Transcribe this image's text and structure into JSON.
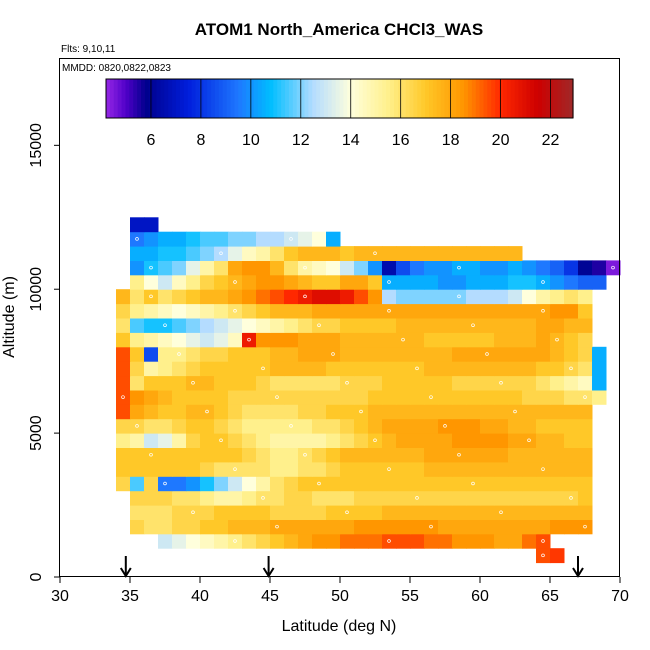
{
  "chart_data": {
    "type": "heatmap",
    "title": "ATOM1 North_America CHCl3_WAS",
    "flights_note": "Flts: 9,10,11",
    "dates_note": "MMDD: 0820,0822,0823",
    "xlabel": "Latitude (deg N)",
    "ylabel": "Altitude (m)",
    "xlim": [
      30,
      70
    ],
    "ylim": [
      0,
      18000
    ],
    "xticks": [
      "30",
      "35",
      "40",
      "45",
      "50",
      "55",
      "60",
      "65",
      "70"
    ],
    "yticks": [
      "0",
      "5000",
      "10000",
      "15000"
    ],
    "colorbar": {
      "min": 4.2,
      "max": 22.9,
      "ticks": [
        "6",
        "8",
        "10",
        "12",
        "14",
        "16",
        "18",
        "20",
        "22"
      ]
    },
    "arrows_lat": [
      34.7,
      44.9,
      67.0
    ],
    "cell_size": {
      "lat_deg": 1.0,
      "alt_m": 500
    },
    "rows": [
      {
        "alt": 750,
        "lat_start": 64,
        "values": [
          19.5,
          19.8
        ]
      },
      {
        "alt": 1250,
        "lat_start": 37,
        "values": [
          13,
          13.5,
          14,
          14.5,
          15,
          15.5,
          16,
          16.5,
          17,
          17.5,
          18,
          18.5,
          18.5,
          19,
          19,
          19,
          19.5,
          19.5,
          19.5,
          19,
          19,
          18.5,
          18.5,
          18.5,
          18,
          18,
          19,
          19.5
        ]
      },
      {
        "alt": 1750,
        "lat_start": 35,
        "values": [
          16.5,
          16,
          16,
          16.5,
          16.5,
          17,
          17,
          17.5,
          17.5,
          17.5,
          18,
          18,
          18,
          18,
          18,
          18,
          18.5,
          18.5,
          18.5,
          18.5,
          18.5,
          18.5,
          18,
          18,
          18,
          18,
          18,
          18,
          18,
          18,
          18.5,
          18.5,
          18.5
        ]
      },
      {
        "alt": 2250,
        "lat_start": 35,
        "values": [
          16,
          16,
          16,
          16.5,
          16.5,
          16.5,
          17,
          17,
          17,
          17,
          16.5,
          16.5,
          16.5,
          16.5,
          17,
          17,
          17,
          17,
          17.5,
          17.5,
          17.5,
          17.5,
          17.5,
          17.5,
          17.5,
          17.5,
          17.5,
          17.5,
          17.5,
          17.5,
          17.5,
          17.5,
          17.5
        ]
      },
      {
        "alt": 2750,
        "lat_start": 35,
        "values": [
          16.5,
          16.5,
          16.5,
          16,
          16,
          15.5,
          15,
          15,
          15.5,
          16,
          16,
          16.5,
          16.5,
          16,
          16,
          16,
          16.5,
          16.5,
          16.5,
          16.5,
          16.5,
          16.5,
          16.5,
          16.5,
          16.5,
          16.5,
          16.5,
          16.5,
          16.5,
          16.5,
          16.5,
          16.5,
          17
        ]
      },
      {
        "alt": 3250,
        "lat_start": 34,
        "values": [
          16.5,
          11.5,
          16.5,
          9.5,
          9.5,
          10,
          11,
          12,
          13,
          14,
          15,
          16,
          16.5,
          17,
          17,
          17,
          17,
          17,
          17,
          17,
          17,
          17,
          17,
          17,
          17,
          17,
          17,
          17,
          17,
          17,
          17,
          17,
          17,
          17
        ]
      },
      {
        "alt": 3750,
        "lat_start": 34,
        "values": [
          17,
          17,
          17,
          17,
          17,
          17,
          16.5,
          16,
          16,
          16,
          16,
          15.5,
          15.5,
          16,
          16,
          16.5,
          17,
          17,
          17,
          17,
          17,
          17,
          17.5,
          17.5,
          17.5,
          17.5,
          17.5,
          17.5,
          17.5,
          17.5,
          17.5,
          17.5,
          17.5,
          17.5
        ]
      },
      {
        "alt": 4250,
        "lat_start": 34,
        "values": [
          17,
          17,
          17,
          17,
          17,
          17,
          17,
          17,
          17,
          16.5,
          16,
          15.5,
          15.5,
          16,
          16.5,
          17,
          17.5,
          17.5,
          17.5,
          17.5,
          17.5,
          17.5,
          18,
          18,
          18,
          18,
          18,
          18,
          17.5,
          17.5,
          17.5,
          17.5,
          17.5,
          17.5
        ]
      },
      {
        "alt": 4750,
        "lat_start": 34,
        "values": [
          15.5,
          15,
          13,
          13.5,
          15,
          16.5,
          17,
          17,
          16.5,
          16,
          15.5,
          15,
          15,
          15,
          15,
          15.5,
          16,
          16.5,
          17,
          17.5,
          18,
          18,
          18,
          18,
          18.5,
          18.5,
          18.5,
          18.5,
          18,
          18,
          17.5,
          17.5,
          17,
          17
        ]
      },
      {
        "alt": 5250,
        "lat_start": 34,
        "values": [
          16.5,
          16.5,
          16,
          16,
          16.5,
          17,
          17,
          16.5,
          16,
          15.5,
          15.5,
          15.5,
          15.5,
          15.5,
          16,
          16,
          16.5,
          17,
          17.5,
          18,
          18,
          18,
          18,
          18.5,
          18.5,
          18.5,
          18,
          18,
          17.5,
          17.5,
          17,
          17,
          17,
          17
        ]
      },
      {
        "alt": 5750,
        "lat_start": 34,
        "values": [
          19.5,
          18,
          17.5,
          17,
          17,
          17.5,
          17.5,
          17,
          16.5,
          16,
          16,
          16,
          16,
          16.5,
          16.5,
          17,
          17,
          17,
          17.5,
          17.5,
          17.5,
          17.5,
          17.5,
          17.5,
          17.5,
          17.5,
          17.5,
          17.5,
          17.5,
          17.5,
          17.5,
          17.5,
          17.5,
          17.5
        ]
      },
      {
        "alt": 6250,
        "lat_start": 34,
        "values": [
          19.5,
          18.5,
          18,
          17.5,
          17,
          17,
          17,
          17,
          16.5,
          16.5,
          16.5,
          16.5,
          16.5,
          16.5,
          16.5,
          16.5,
          16.5,
          16.5,
          17,
          17,
          17,
          17,
          17,
          17,
          17,
          17,
          17,
          17,
          17,
          16.5,
          16.5,
          16.5,
          16,
          16,
          15.5
        ]
      },
      {
        "alt": 6750,
        "lat_start": 34,
        "values": [
          19.5,
          16,
          17,
          17,
          17,
          17.5,
          17.5,
          17,
          17,
          17,
          16.5,
          16,
          16,
          16,
          16,
          16,
          16.5,
          16.5,
          16.5,
          17,
          17,
          17,
          17,
          17,
          16.5,
          16.5,
          16.5,
          16.5,
          16.5,
          16.5,
          16,
          15.5,
          15,
          14.5,
          10.5
        ]
      },
      {
        "alt": 7250,
        "lat_start": 34,
        "values": [
          19.5,
          16.5,
          15,
          15.5,
          16,
          16.5,
          17,
          17,
          17,
          17,
          17,
          17.5,
          17.5,
          17.5,
          17.5,
          17,
          17,
          17,
          17,
          17,
          17,
          17,
          17.5,
          17.5,
          17.5,
          17.5,
          17.5,
          17.5,
          17.5,
          17.5,
          17,
          17,
          16.5,
          16,
          10.5
        ]
      },
      {
        "alt": 7750,
        "lat_start": 34,
        "values": [
          19.5,
          17,
          8.5,
          15.5,
          15.5,
          16,
          16.5,
          16.5,
          17,
          17,
          17,
          17.5,
          17.5,
          18,
          18,
          18,
          17.5,
          17.5,
          17.5,
          17.5,
          17.5,
          17.5,
          17.5,
          17.5,
          18,
          18,
          18,
          18,
          18,
          18,
          18,
          17.5,
          17,
          16.5,
          10.5
        ]
      },
      {
        "alt": 8250,
        "lat_start": 34,
        "values": [
          17,
          15.5,
          15,
          14.5,
          14,
          13.5,
          13,
          13.5,
          14.5,
          20.5,
          18.5,
          18.5,
          18.5,
          18,
          18,
          18,
          17.5,
          17.5,
          17.5,
          17.5,
          17.5,
          17.5,
          17,
          17,
          17,
          17,
          17,
          17.5,
          17.5,
          17.5,
          18,
          17.5,
          17,
          16.5
        ]
      },
      {
        "alt": 8750,
        "lat_start": 34,
        "values": [
          16,
          11.5,
          11,
          11,
          11.5,
          12,
          12.5,
          13,
          13.5,
          14,
          14.5,
          15,
          15.5,
          16,
          16.5,
          16.5,
          17,
          17,
          17,
          17,
          17.5,
          17.5,
          17.5,
          17.5,
          17.5,
          17.5,
          17.5,
          17.5,
          17.5,
          17.5,
          18,
          18,
          17.5,
          17.5
        ]
      },
      {
        "alt": 9250,
        "lat_start": 34,
        "values": [
          16.5,
          15.5,
          15,
          14.5,
          14,
          14.5,
          15,
          15.5,
          16,
          16.5,
          17,
          17.5,
          17.5,
          17.5,
          18,
          18,
          18,
          18,
          18,
          18,
          18,
          18,
          18,
          18,
          18,
          18,
          18,
          18,
          18,
          18,
          18,
          18.5,
          18.5,
          17
        ]
      },
      {
        "alt": 9750,
        "lat_start": 34,
        "values": [
          17.5,
          16,
          17,
          16,
          16.5,
          17,
          17.5,
          17.5,
          18,
          18.5,
          19,
          19.5,
          20,
          20.5,
          21,
          21,
          20.5,
          19.5,
          18.5,
          12.5,
          12,
          12,
          12,
          12,
          12,
          12.5,
          12.5,
          12.5,
          13,
          14,
          15,
          15.5,
          16,
          15.5
        ]
      },
      {
        "alt": 10250,
        "lat_start": 35,
        "values": [
          15.5,
          14,
          13,
          14.5,
          15.5,
          16.5,
          17,
          17.5,
          18,
          18.5,
          18.5,
          18,
          17.5,
          17,
          17,
          18,
          18,
          17,
          10.5,
          10.5,
          10.5,
          10.5,
          10,
          10,
          10.5,
          10.5,
          10.5,
          11,
          11,
          10.5,
          10,
          9.5,
          9,
          9
        ]
      },
      {
        "alt": 10750,
        "lat_start": 35,
        "values": [
          10,
          11,
          11.5,
          12,
          13.5,
          15,
          16,
          18,
          18.5,
          18.5,
          17.5,
          16,
          15,
          14.5,
          14,
          13,
          12,
          10,
          6.5,
          8.5,
          9.5,
          10,
          10,
          10.5,
          10.5,
          10,
          10,
          10.5,
          10,
          9.5,
          9,
          8,
          6,
          5.5,
          4.5
        ]
      },
      {
        "alt": 11250,
        "lat_start": 35,
        "values": [
          10.5,
          10.5,
          11,
          11,
          11.5,
          12,
          12.5,
          13.5,
          14.5,
          15,
          16,
          17,
          17.5,
          17.5,
          17.5,
          17,
          17.5,
          17.5,
          17.5,
          17.5,
          17.5,
          17.5,
          17.5,
          17.5,
          17.5,
          17.5,
          17.5,
          17.5
        ]
      },
      {
        "alt": 11750,
        "lat_start": 35,
        "values": [
          9.5,
          10,
          10.5,
          10.5,
          11,
          11.5,
          11.5,
          12,
          12,
          12.5,
          12.5,
          13,
          13.5,
          14,
          10.5
        ]
      },
      {
        "alt": 12250,
        "lat_start": 35,
        "values": [
          7,
          7
        ]
      }
    ]
  }
}
